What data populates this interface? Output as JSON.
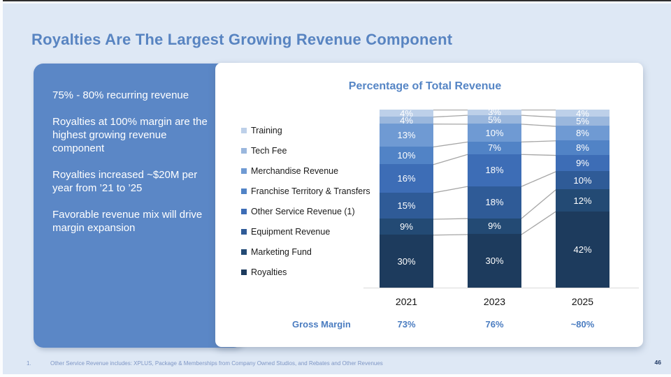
{
  "slide": {
    "title": "Royalties Are The Largest Growing Revenue Component",
    "page_number": "46",
    "footnote_index": "1.",
    "footnote_text": "Other Service Revenue includes: XPLUS, Package & Memberships from Company Owned Studios, and Rebates and Other Revenues"
  },
  "highlights": {
    "items": [
      "75% - 80% recurring revenue",
      "Royalties at 100% margin are the highest growing revenue component",
      "Royalties increased ~$20M per year from ’21 to ’25",
      "Favorable revenue mix will drive margin expansion"
    ]
  },
  "chart_data": {
    "type": "bar",
    "variant": "100%-stacked-column",
    "title": "Percentage of Total Revenue",
    "categories": [
      "2021",
      "2023",
      "2025"
    ],
    "series": [
      {
        "name": "Training",
        "color": "#bdd0e9",
        "values": [
          4,
          3,
          4
        ]
      },
      {
        "name": "Tech Fee",
        "color": "#9ab7dd",
        "values": [
          4,
          5,
          5
        ]
      },
      {
        "name": "Merchandise Revenue",
        "color": "#6f9ad3",
        "values": [
          13,
          10,
          8
        ]
      },
      {
        "name": "Franchise Territory & Transfers",
        "color": "#5183c6",
        "values": [
          10,
          7,
          8
        ]
      },
      {
        "name": "Other Service Revenue (1)",
        "color": "#3d6db6",
        "values": [
          16,
          18,
          9
        ]
      },
      {
        "name": "Equipment Revenue",
        "color": "#2f5b97",
        "values": [
          15,
          18,
          10
        ]
      },
      {
        "name": "Marketing Fund",
        "color": "#234a74",
        "values": [
          9,
          9,
          12
        ]
      },
      {
        "name": "Royalties",
        "color": "#1d3b5d",
        "values": [
          30,
          30,
          42
        ]
      }
    ],
    "data_label_format": "{value}%",
    "gross_margin": {
      "label": "Gross Margin",
      "values": [
        "73%",
        "76%",
        "~80%"
      ]
    },
    "legend_position": "left",
    "connector_color": "#a6a6a6",
    "axis_color": "#d9d9d9",
    "ylim": [
      0,
      100
    ],
    "grid": false
  },
  "colors": {
    "background": "#dee8f5",
    "panel_blue": "#5b87c6",
    "title_blue": "#5884c1",
    "accent_blue": "#4a7cc0"
  }
}
